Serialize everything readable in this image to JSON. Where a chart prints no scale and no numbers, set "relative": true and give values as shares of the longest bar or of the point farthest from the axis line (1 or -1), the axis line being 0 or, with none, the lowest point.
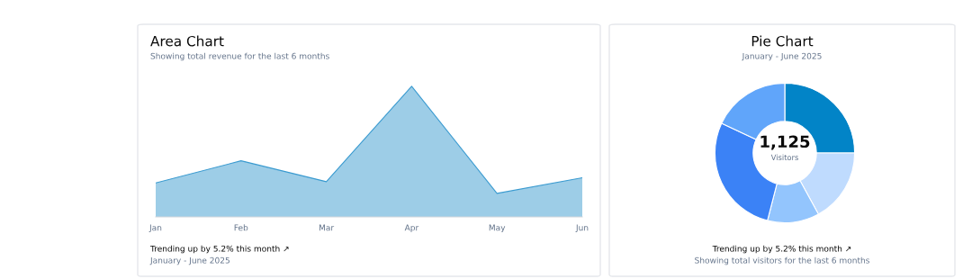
{
  "chart_data": [
    {
      "type": "area",
      "title": "Area Chart",
      "subtitle": "Showing total revenue for the last 6 months",
      "categories": [
        "Jan",
        "Feb",
        "Mar",
        "Apr",
        "May",
        "Jun"
      ],
      "relative": true,
      "series": [
        {
          "color": "#3b9bd0",
          "values": [
            0.26,
            0.43,
            0.27,
            1,
            0.18,
            0.3
          ]
        }
      ],
      "annotations": [
        "Trending up by 5.2% this month ↗",
        "January - June 2025"
      ]
    },
    {
      "type": "donut",
      "title": "Pie Chart",
      "subtitle": "January - June 2025",
      "categories": [
        null,
        null,
        null,
        null,
        null
      ],
      "values": [
        25,
        17,
        12,
        28,
        18
      ],
      "colors": [
        "#0284c7",
        "#bfdbfe",
        "#93c5fd",
        "#3b82f6",
        "#60a5fa"
      ],
      "annotations": [
        "1,125",
        "Visitors",
        "Trending up by 5.2% this month ↗",
        "Showing total visitors for the last 6 months"
      ]
    }
  ]
}
